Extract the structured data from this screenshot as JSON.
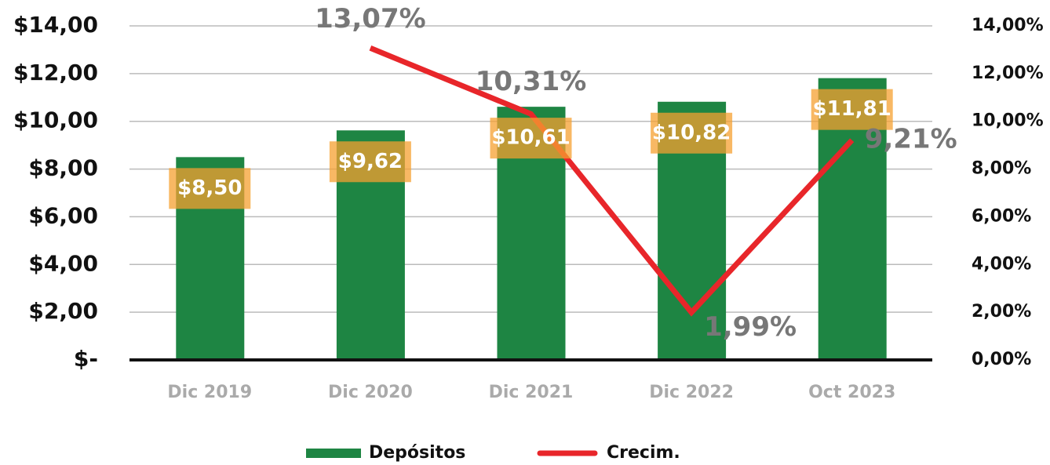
{
  "chart_data": {
    "type": "bar",
    "categories": [
      "Dic 2019",
      "Dic 2020",
      "Dic 2021",
      "Dic 2022",
      "Oct 2023"
    ],
    "series": [
      {
        "name": "Depósitos",
        "color": "#1e8543",
        "values": [
          8.5,
          9.62,
          10.61,
          10.82,
          11.81
        ],
        "value_labels": [
          "$8,50",
          "$9,62",
          "$10,61",
          "$10,82",
          "$11,81"
        ]
      },
      {
        "name": "Crecim.",
        "type": "line",
        "axis": "y2",
        "color": "#e8262a",
        "values": [
          null,
          13.07,
          10.31,
          1.99,
          9.21
        ],
        "value_labels": [
          null,
          "13,07%",
          "10,31%",
          "1,99%",
          "9,21%"
        ]
      }
    ],
    "ylim": [
      0,
      14
    ],
    "yticks": [
      {
        "value": 0,
        "label": "$-"
      },
      {
        "value": 2,
        "label": "$2,00"
      },
      {
        "value": 4,
        "label": "$4,00"
      },
      {
        "value": 6,
        "label": "$6,00"
      },
      {
        "value": 8,
        "label": "$8,00"
      },
      {
        "value": 10,
        "label": "$10,00"
      },
      {
        "value": 12,
        "label": "$12,00"
      },
      {
        "value": 14,
        "label": "$14,00"
      }
    ],
    "y2lim": [
      0,
      14
    ],
    "y2ticks": [
      {
        "value": 0,
        "label": "0,00%"
      },
      {
        "value": 2,
        "label": "2,00%"
      },
      {
        "value": 4,
        "label": "4,00%"
      },
      {
        "value": 6,
        "label": "6,00%"
      },
      {
        "value": 8,
        "label": "8,00%"
      },
      {
        "value": 10,
        "label": "10,00%"
      },
      {
        "value": 12,
        "label": "12,00%"
      },
      {
        "value": 14,
        "label": "14,00%"
      }
    ],
    "grid": true,
    "legend": "bottom"
  }
}
